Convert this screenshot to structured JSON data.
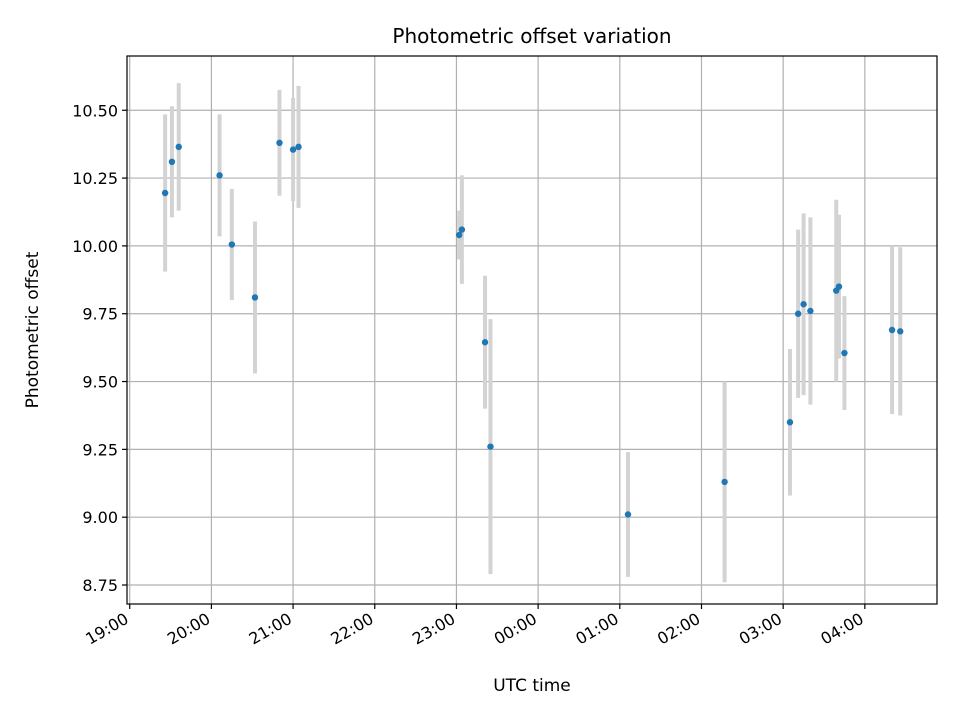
{
  "chart_data": {
    "type": "scatter",
    "title": "Photometric offset variation",
    "xlabel": "UTC time",
    "ylabel": "Photometric offset",
    "x_unit": "hours since 19:00 UTC (axis shows clock time)",
    "xlim": [
      "18:58",
      "04:53"
    ],
    "ylim": [
      8.68,
      10.7
    ],
    "grid": true,
    "x_ticks": [
      "19:00",
      "20:00",
      "21:00",
      "22:00",
      "23:00",
      "00:00",
      "01:00",
      "02:00",
      "03:00",
      "04:00"
    ],
    "y_ticks": [
      "8.75",
      "9.00",
      "9.25",
      "9.50",
      "9.75",
      "10.00",
      "10.25",
      "10.50"
    ],
    "colors": {
      "point": "#1f77b4",
      "errorbar": "#d3d3d3",
      "grid": "#b0b0b0"
    },
    "points": [
      {
        "time": "19:26",
        "y": 10.195,
        "err": 0.29
      },
      {
        "time": "19:31",
        "y": 10.31,
        "err": 0.205
      },
      {
        "time": "19:36",
        "y": 10.365,
        "err": 0.235
      },
      {
        "time": "20:06",
        "y": 10.26,
        "err": 0.225
      },
      {
        "time": "20:15",
        "y": 10.005,
        "err": 0.205
      },
      {
        "time": "20:32",
        "y": 9.81,
        "err": 0.28
      },
      {
        "time": "20:50",
        "y": 10.38,
        "err": 0.195
      },
      {
        "time": "21:00",
        "y": 10.355,
        "err": 0.19
      },
      {
        "time": "21:04",
        "y": 10.365,
        "err": 0.225
      },
      {
        "time": "23:02",
        "y": 10.04,
        "err": 0.09
      },
      {
        "time": "23:04",
        "y": 10.06,
        "err": 0.2
      },
      {
        "time": "23:21",
        "y": 9.645,
        "err": 0.245
      },
      {
        "time": "23:25",
        "y": 9.26,
        "err": 0.47
      },
      {
        "time": "01:06",
        "y": 9.01,
        "err": 0.23
      },
      {
        "time": "02:17",
        "y": 9.13,
        "err": 0.37
      },
      {
        "time": "03:05",
        "y": 9.35,
        "err": 0.27
      },
      {
        "time": "03:11",
        "y": 9.75,
        "err": 0.31
      },
      {
        "time": "03:15",
        "y": 9.785,
        "err": 0.335
      },
      {
        "time": "03:20",
        "y": 9.76,
        "err": 0.345
      },
      {
        "time": "03:39",
        "y": 9.835,
        "err": 0.335
      },
      {
        "time": "03:41",
        "y": 9.85,
        "err": 0.265
      },
      {
        "time": "03:45",
        "y": 9.605,
        "err": 0.21
      },
      {
        "time": "04:20",
        "y": 9.69,
        "err": 0.31
      },
      {
        "time": "04:26",
        "y": 9.685,
        "err": 0.31
      }
    ]
  }
}
